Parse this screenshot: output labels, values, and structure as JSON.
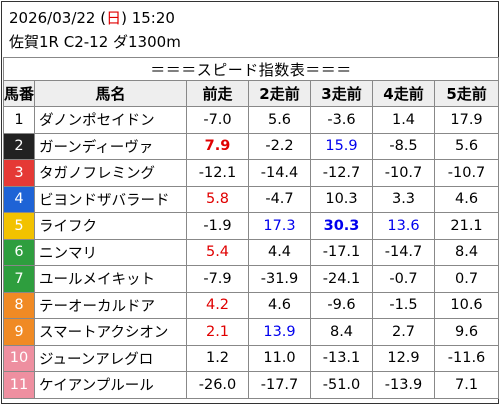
{
  "header": {
    "date_prefix": "2026/03/22 (",
    "weekday": "日",
    "date_suffix": ") 15:20",
    "race": "佐賀1R C2-12 ダ1300m"
  },
  "table": {
    "title": "＝＝＝スピード指数表＝＝＝",
    "columns": [
      "馬番",
      "馬名",
      "前走",
      "2走前",
      "3走前",
      "4走前",
      "5走前"
    ],
    "rows": [
      {
        "no": "1",
        "name": "ダノンポセイドン",
        "bg": "#ffffff",
        "fg": "#000000",
        "vals": [
          {
            "v": "-7.0",
            "s": ""
          },
          {
            "v": "5.6",
            "s": ""
          },
          {
            "v": "-3.6",
            "s": ""
          },
          {
            "v": "1.4",
            "s": ""
          },
          {
            "v": "17.9",
            "s": ""
          }
        ]
      },
      {
        "no": "2",
        "name": "ガーンディーヴァ",
        "bg": "#222222",
        "fg": "#ffffff",
        "vals": [
          {
            "v": "7.9",
            "s": "red bold"
          },
          {
            "v": "-2.2",
            "s": ""
          },
          {
            "v": "15.9",
            "s": "blue"
          },
          {
            "v": "-8.5",
            "s": ""
          },
          {
            "v": "5.6",
            "s": ""
          }
        ]
      },
      {
        "no": "3",
        "name": "タガノフレミング",
        "bg": "#e53935",
        "fg": "#ffffff",
        "vals": [
          {
            "v": "-12.1",
            "s": ""
          },
          {
            "v": "-14.4",
            "s": ""
          },
          {
            "v": "-12.7",
            "s": ""
          },
          {
            "v": "-10.7",
            "s": ""
          },
          {
            "v": "-10.7",
            "s": ""
          }
        ]
      },
      {
        "no": "4",
        "name": "ビヨンドザバラード",
        "bg": "#1e63d6",
        "fg": "#ffffff",
        "vals": [
          {
            "v": "5.8",
            "s": "red"
          },
          {
            "v": "-4.7",
            "s": ""
          },
          {
            "v": "10.3",
            "s": ""
          },
          {
            "v": "3.3",
            "s": ""
          },
          {
            "v": "4.6",
            "s": ""
          }
        ]
      },
      {
        "no": "5",
        "name": "ライフク",
        "bg": "#f2c200",
        "fg": "#ffffff",
        "vals": [
          {
            "v": "-1.9",
            "s": ""
          },
          {
            "v": "17.3",
            "s": "blue"
          },
          {
            "v": "30.3",
            "s": "blue bold"
          },
          {
            "v": "13.6",
            "s": "blue"
          },
          {
            "v": "21.1",
            "s": ""
          }
        ]
      },
      {
        "no": "6",
        "name": "ニンマリ",
        "bg": "#2e9e3e",
        "fg": "#ffffff",
        "vals": [
          {
            "v": "5.4",
            "s": "red"
          },
          {
            "v": "4.4",
            "s": ""
          },
          {
            "v": "-17.1",
            "s": ""
          },
          {
            "v": "-14.7",
            "s": ""
          },
          {
            "v": "8.4",
            "s": ""
          }
        ]
      },
      {
        "no": "7",
        "name": "ユールメイキット",
        "bg": "#2e9e3e",
        "fg": "#ffffff",
        "vals": [
          {
            "v": "-7.9",
            "s": ""
          },
          {
            "v": "-31.9",
            "s": ""
          },
          {
            "v": "-24.1",
            "s": ""
          },
          {
            "v": "-0.7",
            "s": ""
          },
          {
            "v": "0.7",
            "s": ""
          }
        ]
      },
      {
        "no": "8",
        "name": "テーオーカルドア",
        "bg": "#f08a24",
        "fg": "#ffffff",
        "vals": [
          {
            "v": "4.2",
            "s": "red"
          },
          {
            "v": "4.6",
            "s": ""
          },
          {
            "v": "-9.6",
            "s": ""
          },
          {
            "v": "-1.5",
            "s": ""
          },
          {
            "v": "10.6",
            "s": ""
          }
        ]
      },
      {
        "no": "9",
        "name": "スマートアクシオン",
        "bg": "#f08a24",
        "fg": "#ffffff",
        "vals": [
          {
            "v": "2.1",
            "s": "red"
          },
          {
            "v": "13.9",
            "s": "blue"
          },
          {
            "v": "8.4",
            "s": ""
          },
          {
            "v": "2.7",
            "s": ""
          },
          {
            "v": "9.6",
            "s": ""
          }
        ]
      },
      {
        "no": "10",
        "name": "ジューンアレグロ",
        "bg": "#ee8fa0",
        "fg": "#ffffff",
        "vals": [
          {
            "v": "1.2",
            "s": ""
          },
          {
            "v": "11.0",
            "s": ""
          },
          {
            "v": "-13.1",
            "s": ""
          },
          {
            "v": "12.9",
            "s": ""
          },
          {
            "v": "-11.6",
            "s": ""
          }
        ]
      },
      {
        "no": "11",
        "name": "ケイアンプルール",
        "bg": "#ee8fa0",
        "fg": "#ffffff",
        "vals": [
          {
            "v": "-26.0",
            "s": ""
          },
          {
            "v": "-17.7",
            "s": ""
          },
          {
            "v": "-51.0",
            "s": ""
          },
          {
            "v": "-13.9",
            "s": ""
          },
          {
            "v": "7.1",
            "s": ""
          }
        ]
      }
    ]
  }
}
